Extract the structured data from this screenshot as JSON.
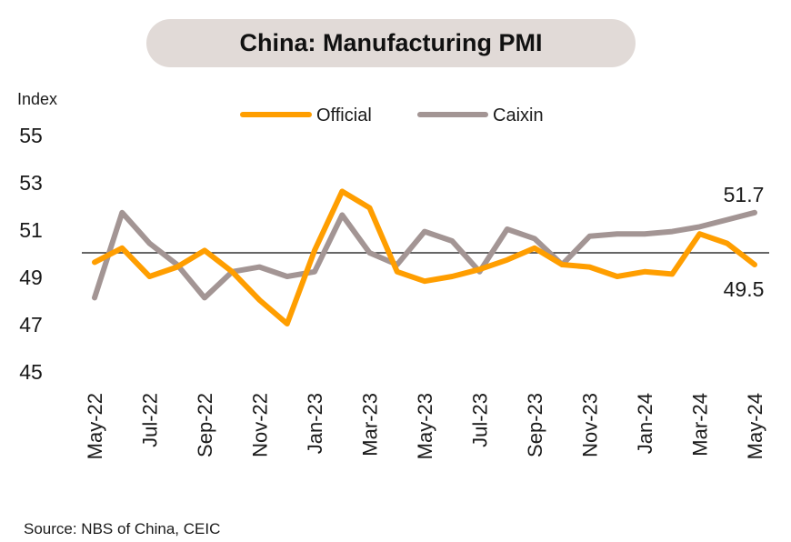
{
  "chart_data": {
    "type": "line",
    "title": "China: Manufacturing PMI",
    "ylabel": "Index",
    "ylim": [
      45,
      55
    ],
    "yticks": [
      45,
      47,
      49,
      51,
      53,
      55
    ],
    "reference_line": 50,
    "x": [
      "May-22",
      "Jun-22",
      "Jul-22",
      "Aug-22",
      "Sep-22",
      "Oct-22",
      "Nov-22",
      "Dec-22",
      "Jan-23",
      "Feb-23",
      "Mar-23",
      "Apr-23",
      "May-23",
      "Jun-23",
      "Jul-23",
      "Aug-23",
      "Sep-23",
      "Oct-23",
      "Nov-23",
      "Dec-23",
      "Jan-24",
      "Feb-24",
      "Mar-24",
      "Apr-24",
      "May-24"
    ],
    "tick_labels": [
      "May-22",
      "Jul-22",
      "Sep-22",
      "Nov-22",
      "Jan-23",
      "Mar-23",
      "May-23",
      "Jul-23",
      "Sep-23",
      "Nov-23",
      "Jan-24",
      "Mar-24",
      "May-24"
    ],
    "tick_every": 2,
    "legend_position": "top-center",
    "grid": false,
    "series": [
      {
        "name": "Official",
        "color": "#ff9e00",
        "values": [
          49.6,
          50.2,
          49.0,
          49.4,
          50.1,
          49.2,
          48.0,
          47.0,
          50.1,
          52.6,
          51.9,
          49.2,
          48.8,
          49.0,
          49.3,
          49.7,
          50.2,
          49.5,
          49.4,
          49.0,
          49.2,
          49.1,
          50.8,
          50.4,
          49.5
        ],
        "end_label": "49.5"
      },
      {
        "name": "Caixin",
        "color": "#a39594",
        "values": [
          48.1,
          51.7,
          50.4,
          49.5,
          48.1,
          49.2,
          49.4,
          49.0,
          49.2,
          51.6,
          50.0,
          49.5,
          50.9,
          50.5,
          49.2,
          51.0,
          50.6,
          49.5,
          50.7,
          50.8,
          50.8,
          50.9,
          51.1,
          51.4,
          51.7
        ],
        "end_label": "51.7"
      }
    ]
  },
  "footer": {
    "source": "Source: NBS of China, CEIC"
  }
}
